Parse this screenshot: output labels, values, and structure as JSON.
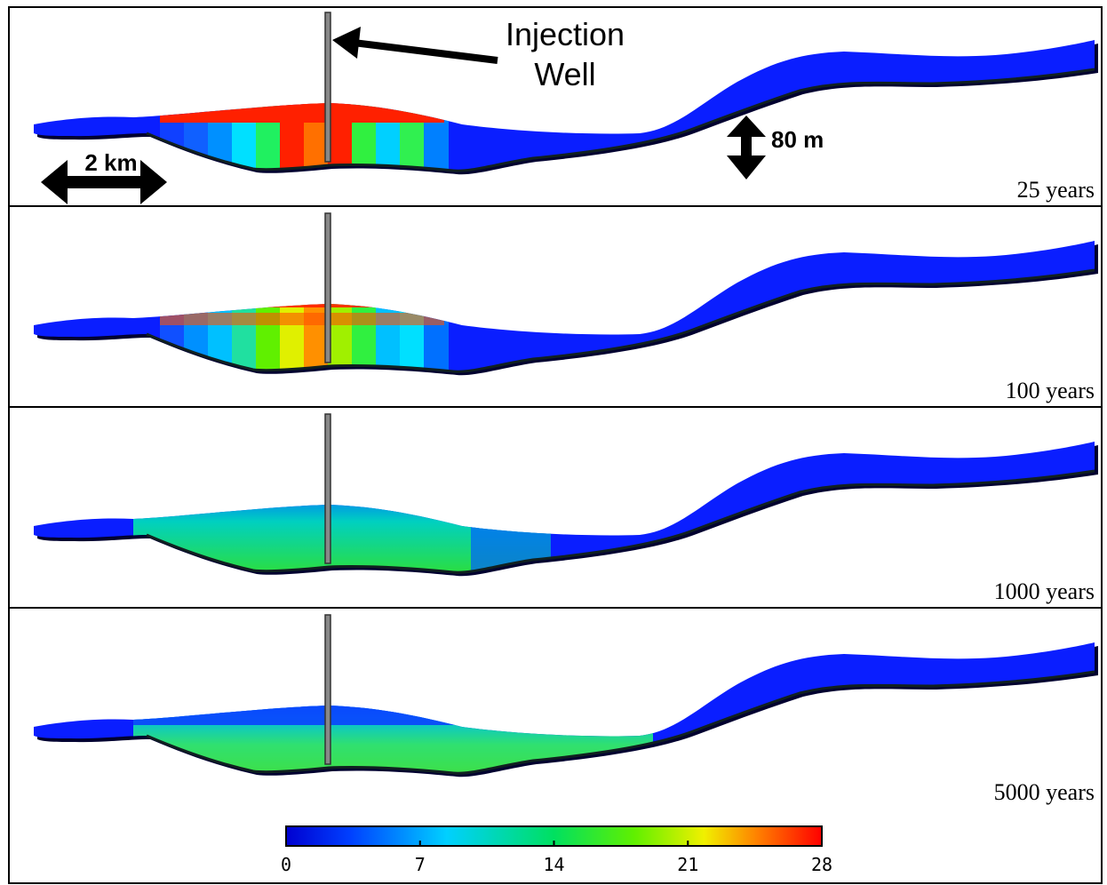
{
  "annotations": {
    "well_label": [
      "Injection",
      "Well"
    ],
    "horizontal_scale": "2 km",
    "vertical_scale": "80 m"
  },
  "panels": [
    {
      "label": "25 years"
    },
    {
      "label": "100 years"
    },
    {
      "label": "1000 years"
    },
    {
      "label": "5000 years"
    }
  ],
  "colorbar": {
    "lim": [
      0,
      28
    ],
    "ticks": [
      0,
      7,
      14,
      21,
      28
    ]
  }
}
